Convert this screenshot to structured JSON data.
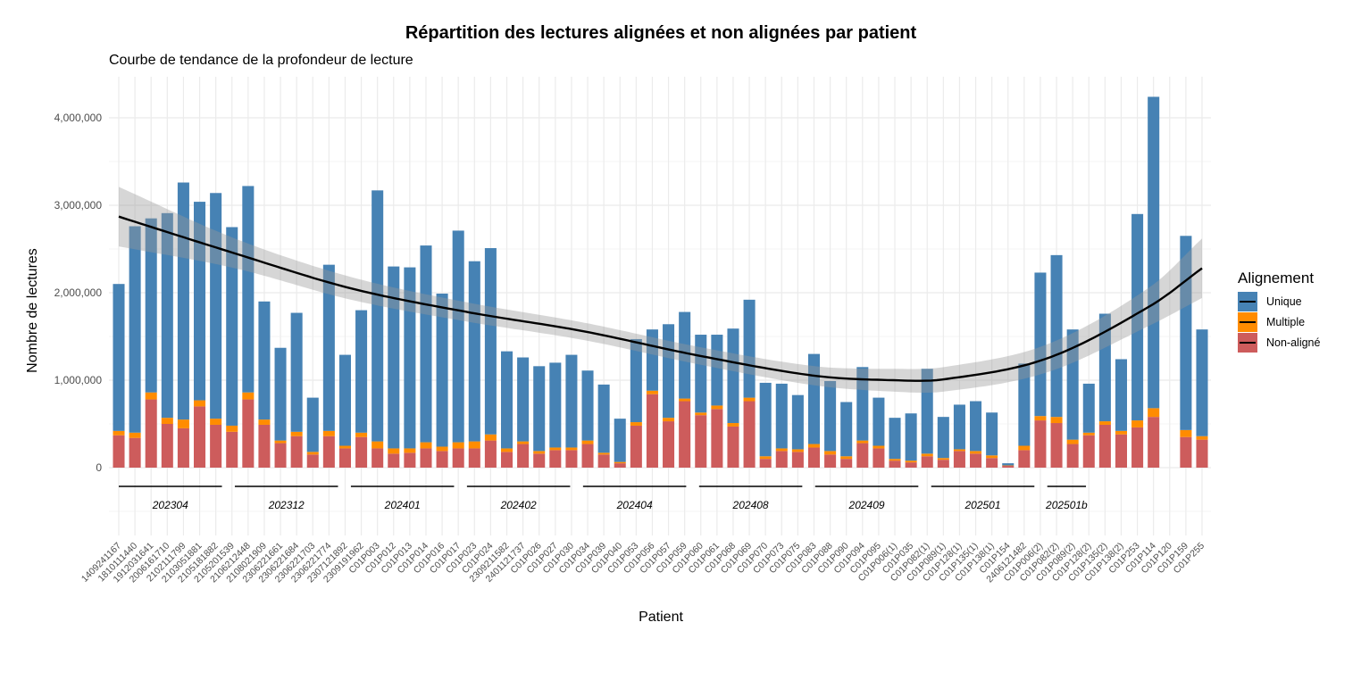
{
  "chart_data": {
    "type": "bar",
    "stacked": true,
    "title": "Répartition des lectures alignées et non alignées par patient",
    "subtitle": "Courbe de tendance de la profondeur de lecture",
    "xlabel": "Patient",
    "ylabel": "Nombre de lectures",
    "ylim": [
      -800000,
      4400000
    ],
    "yticks": [
      0,
      1000000,
      2000000,
      3000000,
      4000000
    ],
    "ytick_labels": [
      "0",
      "1,000,000",
      "2,000,000",
      "3,000,000",
      "4,000,000"
    ],
    "grid": true,
    "legend": {
      "title": "Alignement",
      "position": "right",
      "entries": [
        "Unique",
        "Multiple",
        "Non-aligné"
      ]
    },
    "colors": {
      "Unique": "#4682B4",
      "Multiple": "#FF8C00",
      "Non-aligné": "#CD5C5C",
      "trend": "#000000",
      "band": "#999999"
    },
    "categories": [
      "1409241167",
      "1810111440",
      "1912031641",
      "2006161710",
      "2102111799",
      "2103051881",
      "2105181882",
      "2105201539",
      "2106212448",
      "2108021909",
      "2306221661",
      "2306221684",
      "2306221703",
      "2306221774",
      "2307121892",
      "2309191962",
      "C01P003",
      "C01P012",
      "C01P013",
      "C01P014",
      "C01P016",
      "C01P017",
      "C01P023",
      "C01P024",
      "2309211582",
      "2401121737",
      "C01P026",
      "C01P027",
      "C01P030",
      "C01P034",
      "C01P039",
      "C01P040",
      "C01P053",
      "C01P056",
      "C01P057",
      "C01P059",
      "C01P060",
      "C01P061",
      "C01P068",
      "C01P069",
      "C01P070",
      "C01P073",
      "C01P075",
      "C01P083",
      "C01P088",
      "C01P090",
      "C01P094",
      "C01P095",
      "C01P006(1)",
      "C01P035",
      "C01P082(1)",
      "C01P089(1)",
      "C01P128(1)",
      "C01P135(1)",
      "C01P138(1)",
      "C01P154",
      "2406121482",
      "C01P006(2)",
      "C01P082(2)",
      "C01P089(2)",
      "C01P128(2)",
      "C01P135(2)",
      "C01P138(2)",
      "C01P253",
      "C01P114",
      "C01P120",
      "C01P159",
      "C01P255"
    ],
    "series": [
      {
        "name": "Non-aligné",
        "values": [
          370000,
          340000,
          780000,
          500000,
          450000,
          700000,
          490000,
          410000,
          780000,
          490000,
          280000,
          360000,
          150000,
          360000,
          220000,
          350000,
          220000,
          160000,
          170000,
          220000,
          190000,
          220000,
          220000,
          310000,
          180000,
          270000,
          160000,
          200000,
          200000,
          270000,
          150000,
          50000,
          480000,
          840000,
          530000,
          760000,
          600000,
          670000,
          470000,
          760000,
          100000,
          190000,
          180000,
          230000,
          150000,
          100000,
          280000,
          220000,
          80000,
          60000,
          130000,
          90000,
          190000,
          160000,
          110000,
          20000,
          200000,
          540000,
          510000,
          270000,
          370000,
          490000,
          380000,
          460000,
          580000,
          0,
          350000,
          320000
        ]
      },
      {
        "name": "Multiple",
        "values": [
          50000,
          60000,
          80000,
          70000,
          100000,
          70000,
          70000,
          70000,
          80000,
          60000,
          30000,
          50000,
          30000,
          60000,
          30000,
          50000,
          80000,
          60000,
          50000,
          70000,
          50000,
          70000,
          80000,
          70000,
          40000,
          30000,
          30000,
          30000,
          30000,
          40000,
          20000,
          15000,
          40000,
          40000,
          40000,
          30000,
          30000,
          40000,
          40000,
          40000,
          30000,
          30000,
          30000,
          40000,
          40000,
          30000,
          30000,
          30000,
          20000,
          20000,
          30000,
          20000,
          20000,
          30000,
          30000,
          5000,
          50000,
          50000,
          70000,
          50000,
          30000,
          40000,
          40000,
          80000,
          100000,
          0,
          80000,
          40000
        ]
      },
      {
        "name": "Unique",
        "values": [
          1680000,
          2360000,
          1990000,
          2340000,
          2710000,
          2270000,
          2580000,
          2270000,
          2360000,
          1350000,
          1060000,
          1360000,
          620000,
          1900000,
          1040000,
          1400000,
          2870000,
          2080000,
          2070000,
          2250000,
          1750000,
          2420000,
          2060000,
          2130000,
          1110000,
          960000,
          970000,
          970000,
          1060000,
          800000,
          780000,
          495000,
          950000,
          700000,
          1070000,
          990000,
          890000,
          810000,
          1080000,
          1120000,
          840000,
          740000,
          620000,
          1030000,
          800000,
          620000,
          840000,
          550000,
          470000,
          540000,
          970000,
          470000,
          510000,
          570000,
          490000,
          25000,
          940000,
          1640000,
          1850000,
          1260000,
          560000,
          1230000,
          820000,
          2360000,
          3560000,
          0,
          2220000,
          1220000
        ]
      }
    ],
    "groups": [
      {
        "label": "202304",
        "from": 0,
        "to": 8
      },
      {
        "label": "202312",
        "from": 9,
        "to": 17
      },
      {
        "label": "202401",
        "from": 18,
        "to": 26
      },
      {
        "label": "202402",
        "from": 27,
        "to": 35
      },
      {
        "label": "202404",
        "from": 36,
        "to": 44
      },
      {
        "label": "202408",
        "from": 45,
        "to": 53
      },
      {
        "label": "202409",
        "from": 54,
        "to": 62
      },
      {
        "label": "202501",
        "from": 63,
        "to": 71
      },
      {
        "label": "202501b",
        "from": 72,
        "to": 75
      }
    ],
    "trend": {
      "points": [
        [
          0,
          2870000
        ],
        [
          9,
          2450000
        ],
        [
          18,
          2050000
        ],
        [
          27,
          1780000
        ],
        [
          36,
          1560000
        ],
        [
          45,
          1280000
        ],
        [
          54,
          1050000
        ],
        [
          60,
          1000000
        ],
        [
          64,
          1010000
        ],
        [
          72,
          1250000
        ],
        [
          80,
          1850000
        ],
        [
          84,
          2280000
        ]
      ],
      "band_halfwidth": [
        340000,
        170000,
        130000,
        110000,
        100000,
        100000,
        110000,
        130000,
        140000,
        160000,
        220000,
        340000
      ]
    }
  }
}
